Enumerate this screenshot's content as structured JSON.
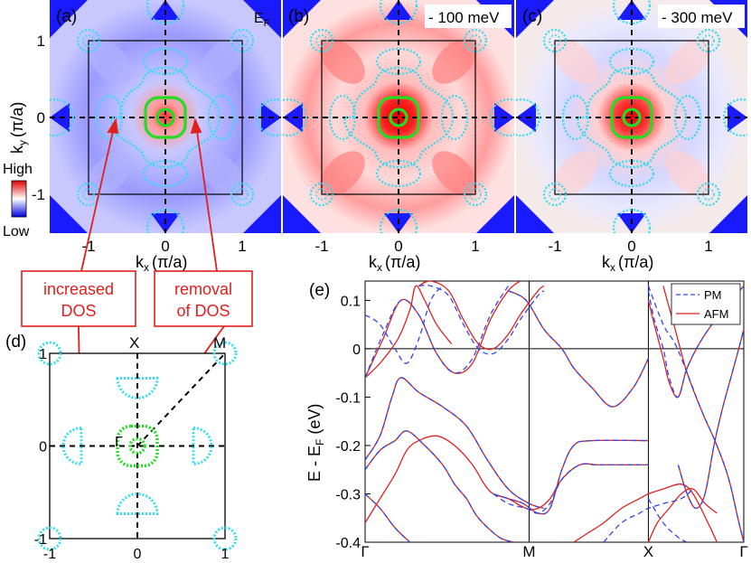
{
  "panels": {
    "a": {
      "label": "(a)",
      "energy": "E",
      "energy_sub": "F"
    },
    "b": {
      "label": "(b)",
      "energy": "- 100 meV"
    },
    "c": {
      "label": "(c)",
      "energy": "- 300 meV"
    },
    "d": {
      "label": "(d)"
    },
    "e": {
      "label": "(e)"
    }
  },
  "colorbar": {
    "high": "High",
    "low": "Low"
  },
  "map_axes": {
    "x_label_main": "k",
    "x_label_sub": "x",
    "x_label_unit": "(π/a)",
    "y_label_main": "k",
    "y_label_sub": "y",
    "y_label_unit": "(π/a)",
    "x_ticks": [
      "-1",
      "0",
      "1"
    ],
    "y_ticks": [
      "1",
      "0",
      "-1"
    ]
  },
  "annotations": {
    "increased": [
      "increased",
      "DOS"
    ],
    "removal": [
      "removal",
      "of  DOS"
    ]
  },
  "bz_panel": {
    "points": {
      "X": "X",
      "M": "M",
      "G": "Γ"
    },
    "x_ticks": [
      "-1",
      "0",
      "1"
    ],
    "y_ticks": [
      "1",
      "0",
      "-1"
    ]
  },
  "colors": {
    "pocket_cyan": "#33dcf0",
    "pocket_green": "#22dd22",
    "map_blue": "#1a1aff",
    "arrow_red": "#e0201c",
    "pm_line": "#3344ee",
    "afm_line": "#dd2222"
  },
  "chart_data": {
    "type": "line",
    "title": "",
    "ylabel": "E - E_F (eV)",
    "xlabel": "",
    "x_ticks": [
      "Γ",
      "M",
      "X",
      "Γ"
    ],
    "y_ticks": [
      "0.1",
      "0",
      "-0.1",
      "-0.2",
      "-0.3",
      "-0.4"
    ],
    "ylim": [
      -0.4,
      0.14
    ],
    "legend": {
      "position": "top-right",
      "entries": [
        "PM",
        "AFM"
      ]
    },
    "series": [
      {
        "name": "AFM",
        "style": "solid",
        "color": "#dd2222",
        "bands": [
          [
            [
              0.0,
              -0.06
            ],
            [
              0.06,
              0.02
            ],
            [
              0.12,
              0.1
            ],
            [
              0.18,
              0.07
            ],
            [
              0.24,
              -0.01
            ],
            [
              0.3,
              -0.05
            ],
            [
              0.36,
              -0.03
            ],
            [
              0.42,
              0.06
            ],
            [
              0.48,
              0.12
            ],
            [
              0.52,
              0.14
            ]
          ],
          [
            [
              0.0,
              -0.06
            ],
            [
              0.05,
              -0.03
            ],
            [
              0.11,
              0.02
            ],
            [
              0.15,
              0.08
            ],
            [
              0.17,
              0.13
            ],
            [
              0.2,
              0.1
            ],
            [
              0.24,
              0.05
            ],
            [
              0.29,
              0.01
            ]
          ],
          [
            [
              0.18,
              0.13
            ],
            [
              0.22,
              0.14
            ],
            [
              0.28,
              0.12
            ],
            [
              0.33,
              0.06
            ],
            [
              0.38,
              0.01
            ],
            [
              0.43,
              0.0
            ],
            [
              0.48,
              0.03
            ],
            [
              0.52,
              0.07
            ],
            [
              0.58,
              0.12
            ],
            [
              0.6,
              0.13
            ]
          ],
          [
            [
              0.48,
              0.12
            ],
            [
              0.54,
              0.1
            ],
            [
              0.6,
              0.04
            ],
            [
              0.66,
              0.0
            ],
            [
              0.7,
              -0.04
            ],
            [
              0.76,
              -0.08
            ],
            [
              0.83,
              -0.12
            ],
            [
              0.9,
              -0.08
            ],
            [
              0.95,
              -0.02
            ]
          ],
          [
            [
              0.95,
              0.1
            ],
            [
              0.97,
              0.05
            ],
            [
              1.0,
              -0.02
            ],
            [
              1.02,
              -0.07
            ],
            [
              1.05,
              -0.1
            ],
            [
              1.08,
              -0.04
            ],
            [
              1.13,
              0.02
            ],
            [
              1.2,
              0.08
            ],
            [
              1.27,
              0.13
            ]
          ],
          [
            [
              1.0,
              0.13
            ],
            [
              1.04,
              0.04
            ],
            [
              1.08,
              -0.05
            ],
            [
              1.13,
              -0.13
            ],
            [
              1.18,
              -0.2
            ],
            [
              1.22,
              -0.27
            ],
            [
              1.25,
              -0.35
            ],
            [
              1.27,
              -0.4
            ]
          ],
          [
            [
              0.0,
              -0.23
            ],
            [
              0.05,
              -0.18
            ],
            [
              0.09,
              -0.1
            ],
            [
              0.12,
              -0.06
            ],
            [
              0.18,
              -0.09
            ],
            [
              0.26,
              -0.12
            ],
            [
              0.34,
              -0.16
            ],
            [
              0.41,
              -0.23
            ],
            [
              0.48,
              -0.29
            ],
            [
              0.55,
              -0.32
            ],
            [
              0.6,
              -0.33
            ]
          ],
          [
            [
              0.0,
              -0.25
            ],
            [
              0.05,
              -0.21
            ],
            [
              0.1,
              -0.19
            ],
            [
              0.14,
              -0.17
            ],
            [
              0.2,
              -0.2
            ],
            [
              0.26,
              -0.24
            ],
            [
              0.3,
              -0.28
            ],
            [
              0.34,
              -0.31
            ],
            [
              0.38,
              -0.35
            ],
            [
              0.45,
              -0.39
            ],
            [
              0.5,
              -0.4
            ]
          ],
          [
            [
              0.0,
              -0.36
            ],
            [
              0.05,
              -0.31
            ],
            [
              0.1,
              -0.26
            ],
            [
              0.14,
              -0.21
            ],
            [
              0.18,
              -0.19
            ],
            [
              0.24,
              -0.18
            ],
            [
              0.3,
              -0.2
            ],
            [
              0.36,
              -0.24
            ],
            [
              0.4,
              -0.28
            ],
            [
              0.43,
              -0.3
            ],
            [
              0.48,
              -0.31
            ],
            [
              0.54,
              -0.33
            ],
            [
              0.58,
              -0.33
            ],
            [
              0.62,
              -0.31
            ],
            [
              0.66,
              -0.27
            ],
            [
              0.72,
              -0.24
            ],
            [
              0.78,
              -0.24
            ],
            [
              0.84,
              -0.24
            ],
            [
              0.95,
              -0.24
            ]
          ],
          [
            [
              0.43,
              -0.3
            ],
            [
              0.48,
              -0.31
            ],
            [
              0.53,
              -0.32
            ],
            [
              0.58,
              -0.34
            ],
            [
              0.62,
              -0.33
            ],
            [
              0.66,
              -0.25
            ],
            [
              0.7,
              -0.2
            ],
            [
              0.76,
              -0.19
            ],
            [
              0.95,
              -0.19
            ]
          ],
          [
            [
              0.7,
              -0.4
            ],
            [
              0.75,
              -0.38
            ],
            [
              0.8,
              -0.36
            ],
            [
              0.86,
              -0.33
            ],
            [
              0.92,
              -0.31
            ],
            [
              0.95,
              -0.3
            ],
            [
              1.0,
              -0.29
            ],
            [
              1.06,
              -0.28
            ],
            [
              1.1,
              -0.3
            ],
            [
              1.15,
              -0.36
            ],
            [
              1.18,
              -0.4
            ]
          ],
          [
            [
              0.95,
              -0.4
            ],
            [
              0.98,
              -0.36
            ],
            [
              1.02,
              -0.33
            ],
            [
              1.06,
              -0.3
            ],
            [
              1.1,
              -0.29
            ],
            [
              1.14,
              -0.32
            ],
            [
              1.18,
              -0.34
            ]
          ],
          [
            [
              1.05,
              -0.24
            ],
            [
              1.08,
              -0.3
            ],
            [
              1.11,
              -0.33
            ],
            [
              1.14,
              -0.3
            ],
            [
              1.17,
              -0.2
            ],
            [
              1.2,
              -0.12
            ],
            [
              1.24,
              -0.03
            ],
            [
              1.27,
              0.04
            ]
          ],
          [
            [
              0.0,
              -0.3
            ],
            [
              0.05,
              -0.33
            ],
            [
              0.1,
              -0.37
            ],
            [
              0.15,
              -0.4
            ]
          ]
        ]
      },
      {
        "name": "PM",
        "style": "dashed",
        "color": "#3344ee",
        "bands": [
          [
            [
              0.0,
              -0.06
            ],
            [
              0.06,
              0.03
            ],
            [
              0.12,
              0.1
            ],
            [
              0.18,
              0.07
            ],
            [
              0.24,
              -0.01
            ],
            [
              0.3,
              -0.05
            ],
            [
              0.36,
              -0.02
            ],
            [
              0.42,
              0.07
            ],
            [
              0.48,
              0.13
            ]
          ],
          [
            [
              0.0,
              0.07
            ],
            [
              0.05,
              0.05
            ],
            [
              0.1,
              0.0
            ],
            [
              0.14,
              -0.03
            ],
            [
              0.18,
              0.02
            ],
            [
              0.22,
              0.1
            ],
            [
              0.26,
              0.13
            ]
          ],
          [
            [
              0.18,
              0.13
            ],
            [
              0.22,
              0.13
            ],
            [
              0.28,
              0.11
            ],
            [
              0.33,
              0.05
            ],
            [
              0.38,
              0.0
            ],
            [
              0.43,
              -0.01
            ],
            [
              0.48,
              0.02
            ],
            [
              0.52,
              0.06
            ],
            [
              0.58,
              0.11
            ],
            [
              0.6,
              0.12
            ]
          ],
          [
            [
              0.48,
              0.12
            ],
            [
              0.54,
              0.1
            ],
            [
              0.6,
              0.04
            ],
            [
              0.66,
              0.0
            ],
            [
              0.7,
              -0.04
            ],
            [
              0.76,
              -0.08
            ],
            [
              0.83,
              -0.12
            ],
            [
              0.9,
              -0.08
            ],
            [
              0.95,
              -0.02
            ]
          ],
          [
            [
              0.95,
              0.12
            ],
            [
              0.97,
              0.06
            ],
            [
              1.0,
              0.0
            ],
            [
              1.02,
              -0.06
            ],
            [
              1.05,
              -0.1
            ],
            [
              1.08,
              -0.04
            ],
            [
              1.13,
              0.02
            ],
            [
              1.2,
              0.08
            ],
            [
              1.27,
              0.13
            ]
          ],
          [
            [
              0.95,
              0.13
            ],
            [
              1.0,
              0.05
            ],
            [
              1.04,
              0.01
            ],
            [
              1.08,
              -0.05
            ],
            [
              1.13,
              -0.13
            ],
            [
              1.18,
              -0.2
            ],
            [
              1.22,
              -0.27
            ],
            [
              1.25,
              -0.35
            ],
            [
              1.27,
              -0.4
            ]
          ],
          [
            [
              0.0,
              -0.23
            ],
            [
              0.05,
              -0.18
            ],
            [
              0.09,
              -0.1
            ],
            [
              0.12,
              -0.06
            ],
            [
              0.18,
              -0.09
            ],
            [
              0.26,
              -0.12
            ],
            [
              0.34,
              -0.16
            ],
            [
              0.41,
              -0.23
            ],
            [
              0.48,
              -0.29
            ],
            [
              0.55,
              -0.32
            ],
            [
              0.6,
              -0.33
            ]
          ],
          [
            [
              0.0,
              -0.25
            ],
            [
              0.05,
              -0.21
            ],
            [
              0.1,
              -0.19
            ],
            [
              0.14,
              -0.17
            ],
            [
              0.2,
              -0.2
            ],
            [
              0.26,
              -0.24
            ],
            [
              0.3,
              -0.28
            ],
            [
              0.34,
              -0.31
            ],
            [
              0.38,
              -0.35
            ],
            [
              0.45,
              -0.39
            ],
            [
              0.5,
              -0.4
            ]
          ],
          [
            [
              0.43,
              -0.3
            ],
            [
              0.48,
              -0.31
            ],
            [
              0.53,
              -0.32
            ],
            [
              0.58,
              -0.34
            ],
            [
              0.62,
              -0.33
            ],
            [
              0.66,
              -0.25
            ],
            [
              0.7,
              -0.2
            ],
            [
              0.76,
              -0.19
            ],
            [
              0.95,
              -0.19
            ]
          ],
          [
            [
              0.43,
              -0.3
            ],
            [
              0.48,
              -0.32
            ],
            [
              0.54,
              -0.33
            ],
            [
              0.58,
              -0.34
            ],
            [
              0.62,
              -0.32
            ],
            [
              0.66,
              -0.27
            ],
            [
              0.72,
              -0.24
            ],
            [
              0.78,
              -0.24
            ],
            [
              0.95,
              -0.24
            ]
          ],
          [
            [
              0.8,
              -0.4
            ],
            [
              0.86,
              -0.36
            ],
            [
              0.92,
              -0.34
            ],
            [
              0.95,
              -0.33
            ],
            [
              1.0,
              -0.32
            ],
            [
              1.06,
              -0.31
            ],
            [
              1.1,
              -0.29
            ]
          ],
          [
            [
              0.95,
              -0.31
            ],
            [
              1.0,
              -0.36
            ],
            [
              1.05,
              -0.39
            ],
            [
              1.08,
              -0.4
            ]
          ],
          [
            [
              1.05,
              -0.24
            ],
            [
              1.08,
              -0.3
            ],
            [
              1.11,
              -0.33
            ],
            [
              1.14,
              -0.3
            ],
            [
              1.17,
              -0.2
            ],
            [
              1.2,
              -0.12
            ],
            [
              1.24,
              -0.03
            ],
            [
              1.27,
              0.04
            ]
          ],
          [
            [
              0.0,
              -0.3
            ],
            [
              0.05,
              -0.33
            ],
            [
              0.1,
              -0.37
            ],
            [
              0.15,
              -0.4
            ]
          ]
        ]
      }
    ]
  }
}
